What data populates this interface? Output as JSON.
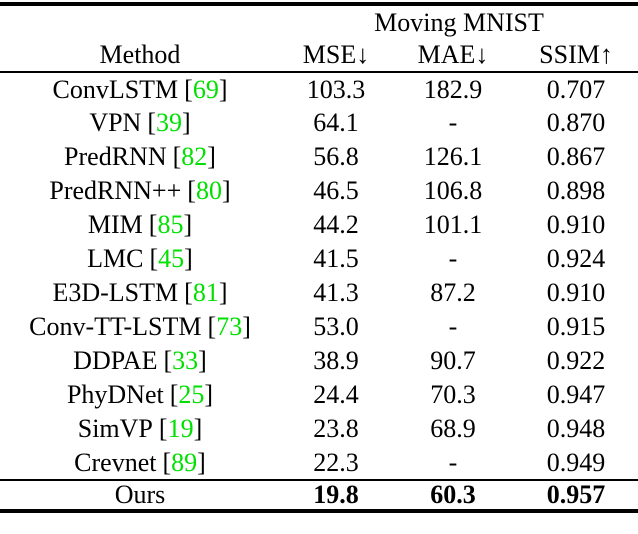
{
  "table": {
    "group_header": "Moving MNIST",
    "columns": {
      "method": "Method",
      "mse": "MSE↓",
      "mae": "MAE↓",
      "ssim": "SSIM↑"
    },
    "cite_open": "[",
    "cite_close": "]",
    "rows": [
      {
        "method": "ConvLSTM",
        "cite": "69",
        "mse": "103.3",
        "mae": "182.9",
        "ssim": "0.707"
      },
      {
        "method": "VPN",
        "cite": "39",
        "mse": "64.1",
        "mae": "-",
        "ssim": "0.870"
      },
      {
        "method": "PredRNN",
        "cite": "82",
        "mse": "56.8",
        "mae": "126.1",
        "ssim": "0.867"
      },
      {
        "method": "PredRNN++",
        "cite": "80",
        "mse": "46.5",
        "mae": "106.8",
        "ssim": "0.898"
      },
      {
        "method": "MIM",
        "cite": "85",
        "mse": "44.2",
        "mae": "101.1",
        "ssim": "0.910"
      },
      {
        "method": "LMC",
        "cite": "45",
        "mse": "41.5",
        "mae": "-",
        "ssim": "0.924"
      },
      {
        "method": "E3D-LSTM",
        "cite": "81",
        "mse": "41.3",
        "mae": "87.2",
        "ssim": "0.910"
      },
      {
        "method": "Conv-TT-LSTM",
        "cite": "73",
        "mse": "53.0",
        "mae": "-",
        "ssim": "0.915"
      },
      {
        "method": "DDPAE",
        "cite": "33",
        "mse": "38.9",
        "mae": "90.7",
        "ssim": "0.922"
      },
      {
        "method": "PhyDNet",
        "cite": "25",
        "mse": "24.4",
        "mae": "70.3",
        "ssim": "0.947"
      },
      {
        "method": "SimVP",
        "cite": "19",
        "mse": "23.8",
        "mae": "68.9",
        "ssim": "0.948"
      },
      {
        "method": "Crevnet",
        "cite": "89",
        "mse": "22.3",
        "mae": "-",
        "ssim": "0.949"
      }
    ],
    "footer": {
      "method": "Ours",
      "mse": "19.8",
      "mae": "60.3",
      "ssim": "0.957"
    }
  },
  "colors": {
    "citation_green": "#00E000"
  }
}
